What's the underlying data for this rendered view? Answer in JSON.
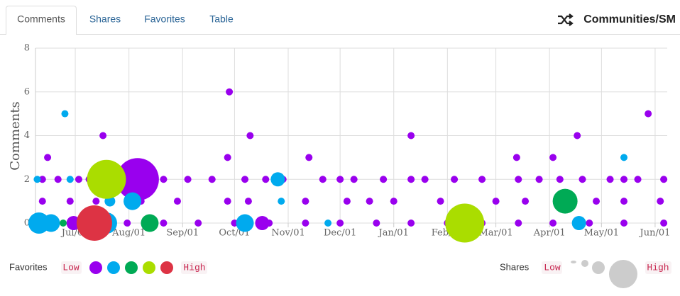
{
  "tabs": [
    "Comments",
    "Shares",
    "Favorites",
    "Table"
  ],
  "header_title": "Communities/SM",
  "legend": {
    "color_title": "Favorites",
    "size_title": "Shares",
    "low": "Low",
    "high": "High"
  },
  "chart_data": {
    "type": "bubble",
    "y_label": "Comments",
    "xlim": [
      0,
      365
    ],
    "xticks": [
      {
        "value": 23,
        "label": "Jul/01"
      },
      {
        "value": 54,
        "label": "Aug/01"
      },
      {
        "value": 85,
        "label": "Sep/01"
      },
      {
        "value": 115,
        "label": "Oct/01"
      },
      {
        "value": 146,
        "label": "Nov/01"
      },
      {
        "value": 176,
        "label": "Dec/01"
      },
      {
        "value": 207,
        "label": "Jan/01"
      },
      {
        "value": 238,
        "label": "Feb/01"
      },
      {
        "value": 266,
        "label": "Mar/01"
      },
      {
        "value": 297,
        "label": "Apr/01"
      },
      {
        "value": 327,
        "label": "May/01"
      },
      {
        "value": 358,
        "label": "Jun/01"
      }
    ],
    "ylim": [
      0,
      8
    ],
    "yticks": [
      0,
      2,
      4,
      6,
      8
    ],
    "grid": true,
    "series": [
      {
        "color": "#9900ee",
        "x": [
          4,
          13,
          25,
          31,
          37,
          74,
          88,
          102,
          121,
          133,
          143,
          166,
          176,
          184,
          201,
          217,
          225,
          242,
          258,
          279,
          291,
          303,
          316,
          332,
          340,
          348,
          363,
          4,
          20,
          35,
          61,
          82,
          111,
          123,
          156,
          180,
          193,
          207,
          234,
          266,
          283,
          307,
          324,
          340,
          361,
          4,
          20,
          37,
          53,
          74,
          94,
          115,
          135,
          156,
          176,
          197,
          217,
          238,
          258,
          279,
          299,
          320,
          340,
          363,
          7,
          39,
          112,
          124,
          111,
          158,
          217,
          278,
          299,
          313,
          354,
          59,
          22,
          131
        ],
        "values": [
          2,
          2,
          2,
          2,
          2,
          2,
          2,
          2,
          2,
          2,
          2,
          2,
          2,
          2,
          2,
          2,
          2,
          2,
          2,
          2,
          2,
          2,
          2,
          2,
          2,
          2,
          2,
          1,
          1,
          1,
          1,
          1,
          1,
          1,
          1,
          1,
          1,
          1,
          1,
          1,
          1,
          1,
          1,
          1,
          1,
          0,
          0,
          0,
          0,
          0,
          0,
          0,
          0,
          0,
          0,
          0,
          0,
          0,
          0,
          0,
          0,
          0,
          0,
          0,
          3,
          4,
          6,
          4,
          3,
          3,
          4,
          3,
          3,
          4,
          5,
          2,
          0,
          0
        ],
        "sizes": [
          0,
          0,
          0,
          0,
          0,
          0,
          0,
          0,
          0,
          0,
          0,
          0,
          0,
          0,
          0,
          0,
          0,
          0,
          0,
          0,
          0,
          0,
          0,
          0,
          0,
          0,
          0,
          0,
          0,
          0,
          0,
          0,
          0,
          0,
          0,
          0,
          0,
          0,
          0,
          0,
          0,
          0,
          0,
          0,
          0,
          0,
          0,
          0,
          0,
          0,
          0,
          0,
          0,
          0,
          0,
          0,
          0,
          0,
          0,
          0,
          0,
          0,
          0,
          0,
          0,
          0,
          0,
          0,
          0,
          0,
          0,
          0,
          0,
          0,
          0,
          10,
          2,
          2
        ]
      },
      {
        "color": "#00aaee",
        "x": [
          17,
          340,
          140,
          56,
          43,
          2,
          9,
          41,
          121,
          314,
          169,
          142,
          1,
          20
        ],
        "values": [
          5,
          3,
          2,
          1,
          1,
          0,
          0,
          0,
          0,
          0,
          0,
          1,
          2,
          2
        ],
        "sizes": [
          0,
          0,
          2,
          3,
          1,
          4,
          3,
          4,
          3,
          2,
          0,
          0,
          0,
          0
        ]
      },
      {
        "color": "#00aa55",
        "x": [
          66,
          306,
          16
        ],
        "values": [
          0,
          1,
          0
        ],
        "sizes": [
          3,
          5,
          0
        ]
      },
      {
        "color": "#aadd00",
        "x": [
          41,
          248
        ],
        "values": [
          2,
          0
        ],
        "sizes": [
          9,
          9
        ]
      },
      {
        "color": "#dd3344",
        "x": [
          34
        ],
        "values": [
          0
        ],
        "sizes": [
          8
        ]
      }
    ]
  }
}
